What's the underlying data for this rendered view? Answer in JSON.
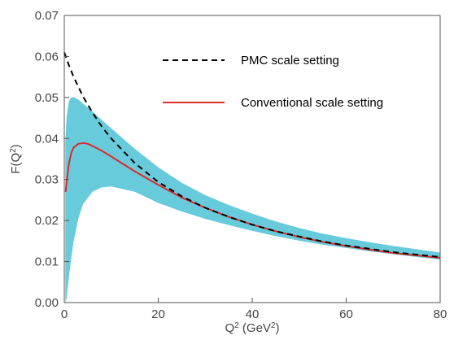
{
  "chart_data": {
    "type": "line",
    "xlabel": "Q^2 (GeV^2)",
    "ylabel": "F(Q^2)",
    "xlim": [
      0,
      80
    ],
    "ylim": [
      0,
      0.07
    ],
    "x_ticks": [
      "0",
      "20",
      "40",
      "60",
      "80"
    ],
    "y_ticks": [
      "0.00",
      "0.01",
      "0.02",
      "0.03",
      "0.04",
      "0.05",
      "0.06",
      "0.07"
    ],
    "grid": false,
    "legend_position": "top-right",
    "band": {
      "color": "#67CBDB",
      "x": [
        0.2,
        0.5,
        1.0,
        1.5,
        2.0,
        3.0,
        4.0,
        6.0,
        8.0,
        10,
        15,
        20,
        25,
        30,
        35,
        40,
        45,
        50,
        55,
        60,
        65,
        70,
        75,
        80
      ],
      "upper": [
        0.039,
        0.0455,
        0.0492,
        0.05,
        0.0501,
        0.0495,
        0.0485,
        0.0466,
        0.0445,
        0.0425,
        0.0375,
        0.033,
        0.0292,
        0.0262,
        0.0238,
        0.0217,
        0.0198,
        0.0182,
        0.0168,
        0.0157,
        0.0147,
        0.0138,
        0.013,
        0.0122
      ],
      "lower": [
        0.0,
        0.001,
        0.0065,
        0.011,
        0.015,
        0.0205,
        0.024,
        0.027,
        0.0281,
        0.0283,
        0.027,
        0.0243,
        0.0222,
        0.0204,
        0.0189,
        0.0175,
        0.0162,
        0.0151,
        0.0141,
        0.0133,
        0.0125,
        0.0118,
        0.0111,
        0.0105
      ]
    },
    "series": [
      {
        "name": "PMC scale setting",
        "color": "#000000",
        "style": "dashed",
        "x": [
          0,
          1,
          2,
          4,
          6,
          8,
          10,
          15,
          20,
          25,
          30,
          35,
          40,
          45,
          50,
          55,
          60,
          65,
          70,
          75,
          80
        ],
        "values": [
          0.061,
          0.0578,
          0.055,
          0.0502,
          0.0463,
          0.0429,
          0.04,
          0.034,
          0.0294,
          0.0259,
          0.0231,
          0.0209,
          0.019,
          0.0174,
          0.0161,
          0.0149,
          0.0139,
          0.0131,
          0.0123,
          0.0117,
          0.0111
        ]
      },
      {
        "name": "Conventional scale setting",
        "color": "#DD2A2A",
        "style": "solid",
        "x": [
          0.3,
          0.5,
          1.0,
          1.5,
          2.0,
          3.0,
          4.0,
          5.0,
          6.0,
          8.0,
          10,
          15,
          20,
          25,
          30,
          35,
          40,
          45,
          50,
          55,
          60,
          65,
          70,
          75,
          80
        ],
        "values": [
          0.027,
          0.0295,
          0.034,
          0.0365,
          0.0378,
          0.0387,
          0.0389,
          0.0387,
          0.0382,
          0.037,
          0.0356,
          0.032,
          0.0287,
          0.0256,
          0.0231,
          0.0209,
          0.019,
          0.0174,
          0.016,
          0.0148,
          0.0138,
          0.0129,
          0.0121,
          0.0115,
          0.0109
        ]
      }
    ]
  }
}
